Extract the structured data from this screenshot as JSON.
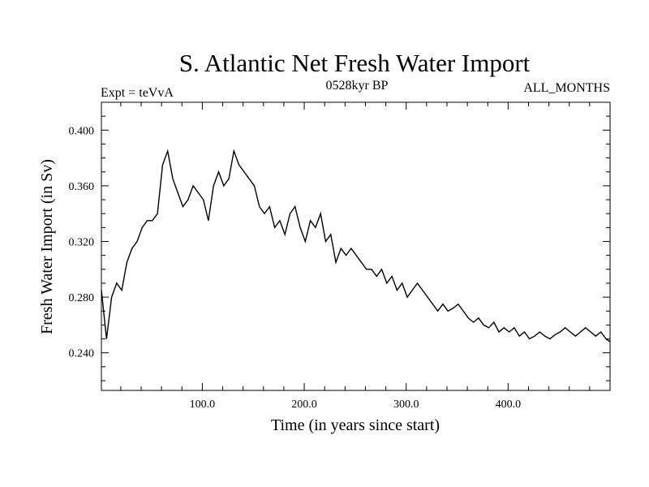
{
  "chart_data": {
    "type": "line",
    "title": "S. Atlantic Net Fresh Water Import",
    "subtitle_left": "Expt = teVvA",
    "subtitle_center": "0528kyr BP",
    "subtitle_right": "ALL_MONTHS",
    "xlabel": "Time (in years since start)",
    "ylabel": "Fresh Water Import (in Sv)",
    "xlim": [
      1,
      500
    ],
    "ylim": [
      0.213,
      0.42
    ],
    "x_ticks": [
      100,
      200,
      300,
      400
    ],
    "x_tick_labels": [
      "100.0",
      "200.0",
      "300.0",
      "400.0"
    ],
    "y_ticks": [
      0.24,
      0.28,
      0.32,
      0.36,
      0.4
    ],
    "y_tick_labels": [
      "0.240",
      "0.280",
      "0.320",
      "0.360",
      "0.400"
    ],
    "series": [
      {
        "name": "Fresh Water Import",
        "x_start": 1,
        "x_step": 5,
        "values": [
          0.285,
          0.25,
          0.28,
          0.29,
          0.285,
          0.305,
          0.315,
          0.32,
          0.33,
          0.335,
          0.335,
          0.34,
          0.375,
          0.385,
          0.365,
          0.355,
          0.345,
          0.35,
          0.36,
          0.355,
          0.35,
          0.335,
          0.36,
          0.37,
          0.36,
          0.365,
          0.385,
          0.375,
          0.37,
          0.365,
          0.36,
          0.345,
          0.34,
          0.345,
          0.33,
          0.335,
          0.325,
          0.34,
          0.345,
          0.33,
          0.32,
          0.335,
          0.33,
          0.34,
          0.32,
          0.325,
          0.305,
          0.315,
          0.31,
          0.315,
          0.31,
          0.305,
          0.3,
          0.3,
          0.295,
          0.3,
          0.29,
          0.295,
          0.285,
          0.29,
          0.28,
          0.285,
          0.29,
          0.285,
          0.28,
          0.275,
          0.27,
          0.275,
          0.27,
          0.272,
          0.275,
          0.27,
          0.265,
          0.262,
          0.265,
          0.26,
          0.258,
          0.262,
          0.255,
          0.258,
          0.255,
          0.258,
          0.252,
          0.255,
          0.25,
          0.252,
          0.255,
          0.252,
          0.25,
          0.253,
          0.255,
          0.258,
          0.255,
          0.252,
          0.255,
          0.258,
          0.255,
          0.252,
          0.255,
          0.25,
          0.248
        ]
      }
    ]
  }
}
